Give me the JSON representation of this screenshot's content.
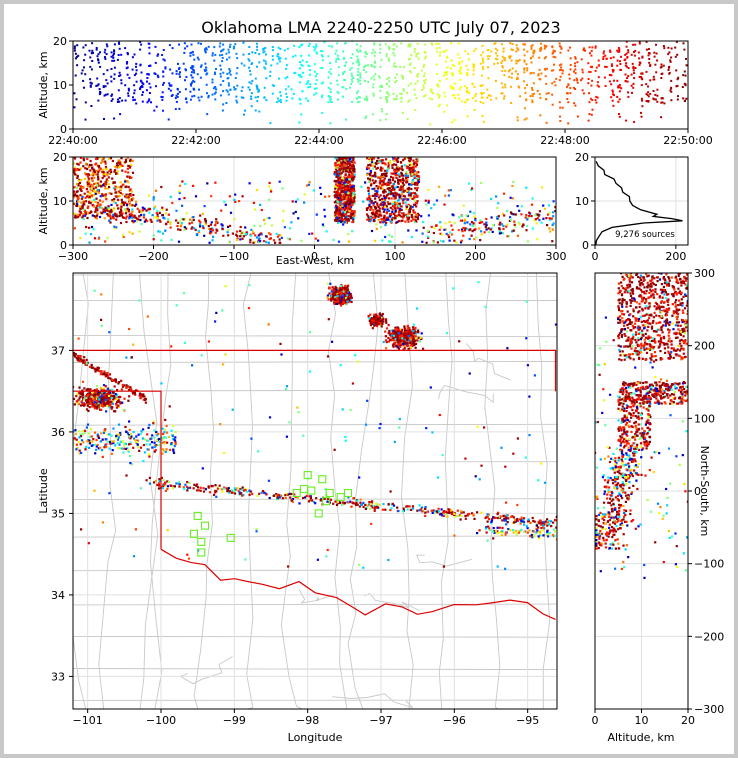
{
  "title": "Oklahoma LMA 2240-2250 UTC July 07, 2023",
  "colors": {
    "state_border": "#dd0000",
    "county_lines": "#c8c8c8",
    "station_marker": "#66ee22",
    "colormap": [
      "#00008f",
      "#0000ff",
      "#0080ff",
      "#00ffff",
      "#80ff80",
      "#ffff00",
      "#ff8000",
      "#ff0000",
      "#800000"
    ]
  },
  "chart_data": [
    {
      "id": "time-height",
      "type": "scatter",
      "ylabel": "Altitude, km",
      "xlabel": "",
      "x_tick_labels": [
        "22:40:00",
        "22:42:00",
        "22:44:00",
        "22:46:00",
        "22:48:00",
        "22:50:00"
      ],
      "y_tick_labels": [
        "0",
        "10",
        "20"
      ],
      "xlim": [
        "22:40:00",
        "22:50:00"
      ],
      "ylim": [
        0,
        20
      ],
      "color_by": "time"
    },
    {
      "id": "east-west-altitude",
      "type": "scatter",
      "xlabel": "East-West, km",
      "ylabel": "Altitude, km",
      "x_tick_labels": [
        "−300",
        "−200",
        "−100",
        "0",
        "100",
        "200",
        "300"
      ],
      "y_tick_labels": [
        "0",
        "10",
        "20"
      ],
      "xlim": [
        -300,
        300
      ],
      "ylim": [
        0,
        20
      ],
      "clusters_km": [
        {
          "x_range": [
            -300,
            -230
          ],
          "alt_range": [
            6,
            20
          ]
        },
        {
          "x_range": [
            25,
            50
          ],
          "alt_range": [
            5,
            20
          ]
        },
        {
          "x_range": [
            65,
            130
          ],
          "alt_range": [
            5,
            20
          ]
        }
      ]
    },
    {
      "id": "altitude-histogram",
      "type": "line",
      "x_tick_labels": [
        "0",
        "200"
      ],
      "y_tick_labels": [
        "0",
        "10",
        "20"
      ],
      "xlim": [
        0,
        230
      ],
      "ylim": [
        0,
        20
      ],
      "annotation": "9,276 sources",
      "altitude_km": [
        0,
        1,
        2,
        3,
        4,
        5,
        5.5,
        6,
        6.5,
        7,
        8,
        9,
        10,
        11,
        12,
        13,
        14,
        15,
        16,
        17,
        18,
        19
      ],
      "sources": [
        2,
        8,
        10,
        20,
        40,
        120,
        215,
        190,
        140,
        155,
        120,
        100,
        85,
        80,
        70,
        65,
        50,
        45,
        25,
        20,
        10,
        3
      ]
    },
    {
      "id": "plan-view",
      "type": "scatter",
      "xlabel": "Longitude",
      "ylabel": "Latitude",
      "x_tick_labels": [
        "−101",
        "−100",
        "−99",
        "−98",
        "−97",
        "−96",
        "−95"
      ],
      "y_tick_labels": [
        "33",
        "34",
        "35",
        "36",
        "37"
      ],
      "xlim": [
        -101.2,
        -94.6
      ],
      "ylim": [
        32.6,
        37.95
      ],
      "stations": [
        [
          -99.5,
          34.97
        ],
        [
          -99.4,
          34.85
        ],
        [
          -99.55,
          34.75
        ],
        [
          -99.45,
          34.65
        ],
        [
          -99.45,
          34.52
        ],
        [
          -99.05,
          34.7
        ],
        [
          -98.15,
          35.25
        ],
        [
          -98.0,
          35.47
        ],
        [
          -97.95,
          35.28
        ],
        [
          -97.85,
          35.0
        ],
        [
          -97.8,
          35.42
        ],
        [
          -97.75,
          35.15
        ],
        [
          -97.7,
          35.25
        ],
        [
          -97.55,
          35.2
        ],
        [
          -97.45,
          35.25
        ],
        [
          -98.05,
          35.3
        ]
      ]
    },
    {
      "id": "altitude-north-south",
      "type": "scatter",
      "xlabel": "Altitude, km",
      "ylabel": "North-South, km",
      "x_tick_labels": [
        "0",
        "10",
        "20"
      ],
      "y_tick_labels": [
        "−300",
        "−200",
        "−100",
        "0",
        "100",
        "200",
        "300"
      ],
      "xlim": [
        0,
        20
      ],
      "ylim": [
        -300,
        300
      ]
    }
  ]
}
